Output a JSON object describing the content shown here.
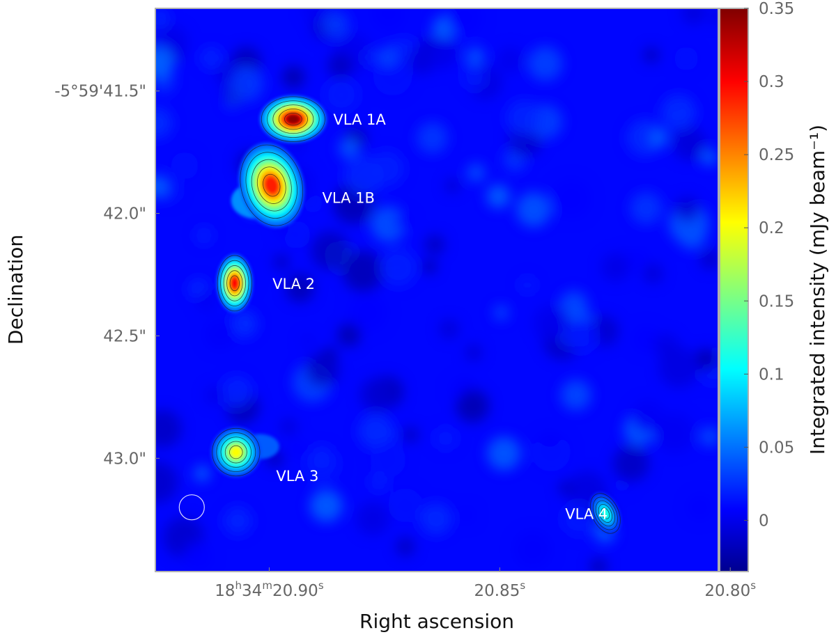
{
  "chart_data": {
    "type": "heatmap",
    "title": "",
    "xlabel": "Right ascension",
    "ylabel": "Declination",
    "colorbar_label": "Integrated intensity (mJy beam⁻¹)",
    "colormap": "jet",
    "clim": [
      -0.035,
      0.35
    ],
    "background_level": 0.015,
    "x_ticks": [
      {
        "value": 20.9,
        "label": "18h34m20.90s",
        "parts": [
          "18",
          "h",
          "34",
          "m",
          "20.90",
          "s"
        ]
      },
      {
        "value": 20.85,
        "label": "20.85s",
        "parts": [
          "20.85",
          "s"
        ]
      },
      {
        "value": 20.8,
        "label": "20.80s",
        "parts": [
          "20.80",
          "s"
        ]
      }
    ],
    "y_ticks": [
      {
        "value": 41.5,
        "label": "-5°59'41.5\""
      },
      {
        "value": 42.0,
        "label": "42.0\""
      },
      {
        "value": 42.5,
        "label": "42.5\""
      },
      {
        "value": 43.0,
        "label": "43.0\""
      }
    ],
    "xlim": [
      20.9247,
      20.8026
    ],
    "ylim": [
      41.1625,
      43.4625
    ],
    "colorbar_ticks": [
      {
        "value": 0,
        "label": "0"
      },
      {
        "value": 0.05,
        "label": "0.05"
      },
      {
        "value": 0.1,
        "label": "0.1"
      },
      {
        "value": 0.15,
        "label": "0.15"
      },
      {
        "value": 0.2,
        "label": "0.2"
      },
      {
        "value": 0.25,
        "label": "0.25"
      },
      {
        "value": 0.3,
        "label": "0.3"
      },
      {
        "value": 0.35,
        "label": "0.35"
      }
    ],
    "sources": [
      {
        "name": "VLA 1A",
        "ra": 20.8948,
        "dec": 41.615,
        "peak": 0.345,
        "label_ra": 20.8861,
        "label_dec": 41.615
      },
      {
        "name": "VLA 1B",
        "ra": 20.8995,
        "dec": 41.885,
        "peak": 0.29,
        "label_ra": 20.8885,
        "label_dec": 41.935
      },
      {
        "name": "VLA 2",
        "ra": 20.9075,
        "dec": 42.285,
        "peak": 0.3,
        "label_ra": 20.8993,
        "label_dec": 42.285
      },
      {
        "name": "VLA 3",
        "ra": 20.9072,
        "dec": 42.975,
        "peak": 0.205,
        "label_ra": 20.8985,
        "label_dec": 43.07
      },
      {
        "name": "VLA 4",
        "ra": 20.8271,
        "dec": 43.225,
        "peak": 0.12,
        "label_ra": 20.8358,
        "label_dec": 43.225
      }
    ],
    "beam": {
      "ra": 20.9168,
      "dec": 43.2
    }
  }
}
